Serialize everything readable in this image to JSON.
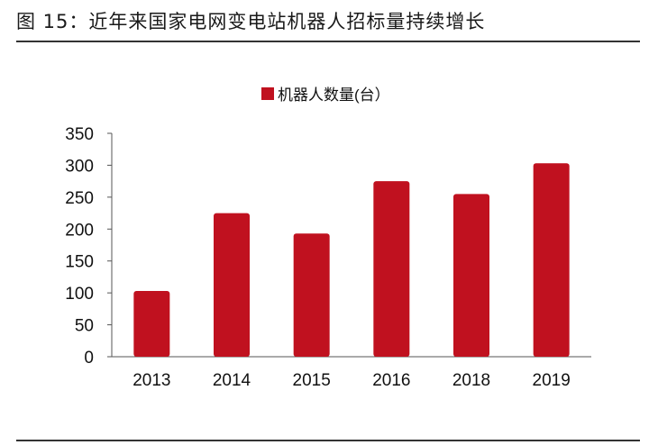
{
  "figure_title": "图 15：近年来国家电网变电站机器人招标量持续增长",
  "chart_data": {
    "type": "bar",
    "categories": [
      "2013",
      "2014",
      "2015",
      "2016",
      "2018",
      "2019"
    ],
    "series": [
      {
        "name": "机器人数量(台）",
        "values": [
          103,
          225,
          193,
          275,
          255,
          303
        ],
        "color": "#c0111f"
      }
    ],
    "ylim": [
      0,
      350
    ],
    "yticks": [
      0,
      50,
      100,
      150,
      200,
      250,
      300,
      350
    ],
    "grid": false,
    "legend_position": "top-center",
    "xlabel": "",
    "ylabel": ""
  }
}
